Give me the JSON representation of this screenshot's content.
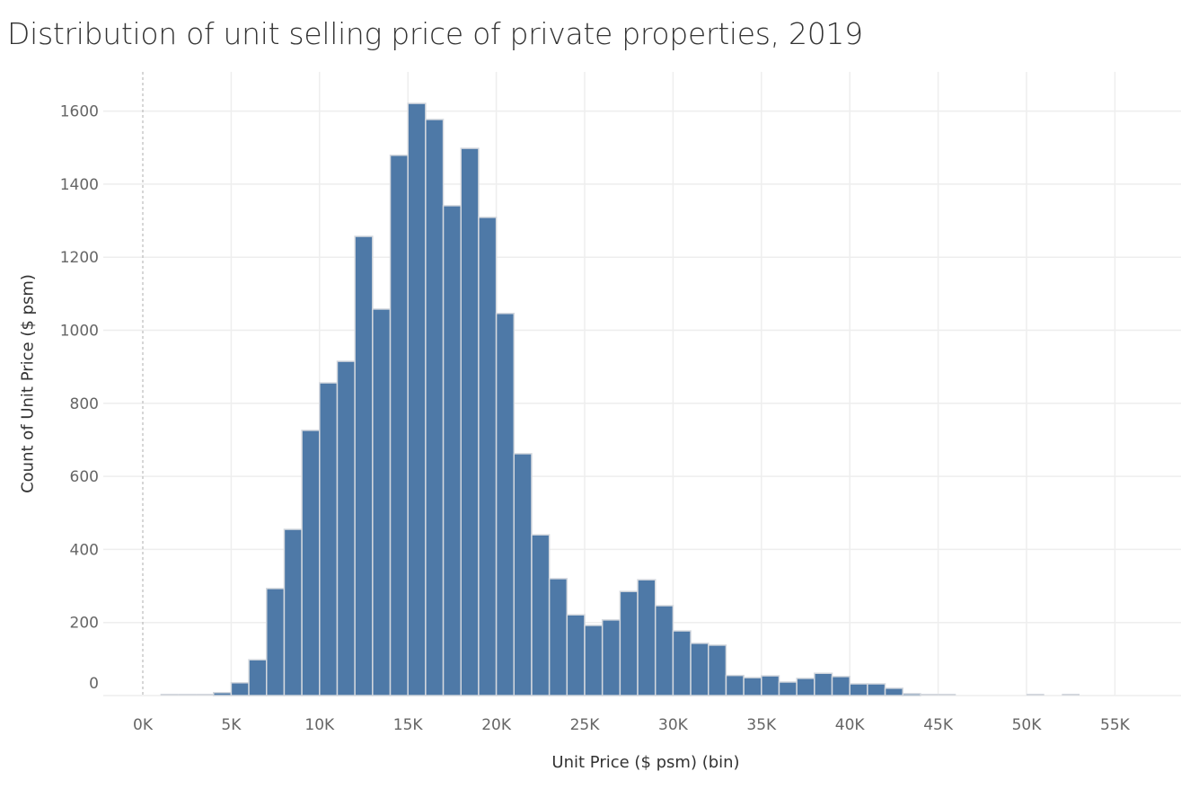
{
  "chart_data": {
    "type": "bar",
    "title": "Distribution of unit selling price of private properties, 2019",
    "xlabel": "Unit Price ($ psm) (bin)",
    "ylabel": "Count of Unit Price ($ psm)",
    "bin_width_k": 1,
    "bin_starts_k": [
      1,
      2,
      3,
      4,
      5,
      6,
      7,
      8,
      9,
      10,
      11,
      12,
      13,
      14,
      15,
      16,
      17,
      18,
      19,
      20,
      21,
      22,
      23,
      24,
      25,
      26,
      27,
      28,
      29,
      30,
      31,
      32,
      33,
      34,
      35,
      36,
      37,
      38,
      39,
      40,
      41,
      42,
      43,
      44,
      45,
      50,
      52
    ],
    "values": [
      2,
      2,
      2,
      8,
      35,
      98,
      293,
      455,
      726,
      856,
      915,
      1257,
      1058,
      1479,
      1621,
      1577,
      1341,
      1498,
      1309,
      1046,
      662,
      440,
      320,
      221,
      192,
      207,
      285,
      317,
      246,
      177,
      143,
      138,
      55,
      49,
      54,
      37,
      47,
      61,
      52,
      32,
      32,
      20,
      5,
      2,
      2,
      2,
      2
    ],
    "xlim_k": [
      -2,
      58
    ],
    "ylim": [
      0,
      1700
    ],
    "x_ticks": [
      "0K",
      "5K",
      "10K",
      "15K",
      "20K",
      "25K",
      "30K",
      "35K",
      "40K",
      "45K",
      "50K",
      "55K"
    ],
    "x_tick_values_k": [
      0,
      5,
      10,
      15,
      20,
      25,
      30,
      35,
      40,
      45,
      50,
      55
    ],
    "y_ticks": [
      "0",
      "200",
      "400",
      "600",
      "800",
      "1000",
      "1200",
      "1400",
      "1600"
    ],
    "y_tick_values": [
      0,
      200,
      400,
      600,
      800,
      1000,
      1200,
      1400,
      1600
    ],
    "grid": true,
    "bar_color": "#4e79a7",
    "bar_edge_color": "#d4d8de",
    "zero_line_color": "#bbbbbb"
  }
}
